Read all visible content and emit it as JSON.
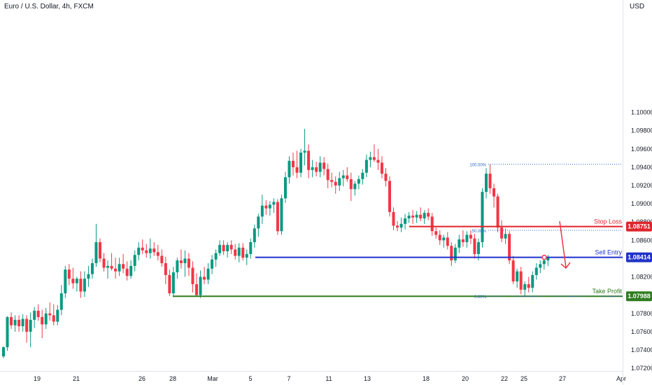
{
  "header": {
    "title": "Euro / U.S. Dollar, 4h, FXCM",
    "currency": "USD"
  },
  "colors": {
    "up": "#089981",
    "down": "#f23645",
    "stop": "#e0232a",
    "entry": "#1f33c9",
    "tp": "#2e7d1e",
    "fib": "#2a6ac8"
  },
  "chart_data": {
    "type": "candlestick",
    "title": "Euro / U.S. Dollar, 4h, FXCM",
    "ylim": [
      1.0717,
      1.1123
    ],
    "yticks": [
      "1.07200",
      "1.07400",
      "1.07600",
      "1.07800",
      "1.08000",
      "1.08200",
      "1.08400",
      "1.08600",
      "1.08800",
      "1.09000",
      "1.09200",
      "1.09400",
      "1.09600",
      "1.09800",
      "1.10000"
    ],
    "xticks": [
      "19",
      "21",
      "26",
      "28",
      "Mar",
      "5",
      "7",
      "11",
      "13",
      "18",
      "20",
      "22",
      "25",
      "27",
      "Apr"
    ],
    "levels": [
      {
        "name": "Stop Loss",
        "value": 1.08751,
        "label": "1.08751",
        "color": "#e0232a"
      },
      {
        "name": "Sell Entry",
        "value": 1.08414,
        "label": "1.08414",
        "color": "#1f33c9"
      },
      {
        "name": "Take Profit",
        "value": 1.07988,
        "label": "1.07988",
        "color": "#2e7d1e"
      }
    ],
    "fibonacci": [
      {
        "label": "100.00%",
        "value": 1.09433
      },
      {
        "label": "50.00%",
        "value": 1.0871
      },
      {
        "label": "0.00%",
        "value": 1.07988
      }
    ],
    "candles": [
      [
        1.0733,
        1.0744,
        1.0731,
        1.0743
      ],
      [
        1.0743,
        1.0777,
        1.0739,
        1.0776
      ],
      [
        1.0776,
        1.0781,
        1.0763,
        1.0767
      ],
      [
        1.0767,
        1.0778,
        1.076,
        1.0773
      ],
      [
        1.0773,
        1.0778,
        1.076,
        1.0766
      ],
      [
        1.0766,
        1.0779,
        1.076,
        1.0774
      ],
      [
        1.0774,
        1.0778,
        1.0748,
        1.076
      ],
      [
        1.076,
        1.0781,
        1.0743,
        1.0773
      ],
      [
        1.0773,
        1.0787,
        1.0764,
        1.0783
      ],
      [
        1.0783,
        1.079,
        1.0772,
        1.0776
      ],
      [
        1.0776,
        1.0784,
        1.0753,
        1.0768
      ],
      [
        1.0768,
        1.0786,
        1.0763,
        1.078
      ],
      [
        1.078,
        1.0792,
        1.0772,
        1.0778
      ],
      [
        1.0778,
        1.079,
        1.0767,
        1.0771
      ],
      [
        1.0771,
        1.0789,
        1.0767,
        1.0784
      ],
      [
        1.0784,
        1.0811,
        1.0778,
        1.0802
      ],
      [
        1.0802,
        1.0832,
        1.0797,
        1.0828
      ],
      [
        1.0828,
        1.0834,
        1.0811,
        1.0818
      ],
      [
        1.0818,
        1.083,
        1.0807,
        1.0813
      ],
      [
        1.0813,
        1.082,
        1.0804,
        1.0818
      ],
      [
        1.0818,
        1.0826,
        1.0797,
        1.0804
      ],
      [
        1.0804,
        1.0826,
        1.0798,
        1.0818
      ],
      [
        1.0818,
        1.0832,
        1.0809,
        1.0823
      ],
      [
        1.0823,
        1.084,
        1.0818,
        1.0835
      ],
      [
        1.0835,
        1.0878,
        1.0831,
        1.0858
      ],
      [
        1.0858,
        1.0862,
        1.0836,
        1.084
      ],
      [
        1.084,
        1.0846,
        1.0826,
        1.083
      ],
      [
        1.083,
        1.0838,
        1.0818,
        1.0832
      ],
      [
        1.0832,
        1.0846,
        1.0827,
        1.0829
      ],
      [
        1.0829,
        1.0841,
        1.0818,
        1.0826
      ],
      [
        1.0826,
        1.0841,
        1.0821,
        1.0834
      ],
      [
        1.0834,
        1.0845,
        1.0824,
        1.0829
      ],
      [
        1.0829,
        1.0837,
        1.0816,
        1.0821
      ],
      [
        1.0821,
        1.0838,
        1.0818,
        1.0832
      ],
      [
        1.0832,
        1.0849,
        1.0826,
        1.0844
      ],
      [
        1.0844,
        1.0858,
        1.0838,
        1.0852
      ],
      [
        1.0852,
        1.0861,
        1.0845,
        1.0849
      ],
      [
        1.0849,
        1.0856,
        1.0841,
        1.0846
      ],
      [
        1.0846,
        1.0862,
        1.084,
        1.0851
      ],
      [
        1.0851,
        1.0858,
        1.0843,
        1.0847
      ],
      [
        1.0847,
        1.0855,
        1.0838,
        1.0843
      ],
      [
        1.0843,
        1.085,
        1.0831,
        1.0835
      ],
      [
        1.0835,
        1.0842,
        1.0812,
        1.0822
      ],
      [
        1.0822,
        1.0828,
        1.0799,
        1.0802
      ],
      [
        1.0802,
        1.0831,
        1.0799,
        1.0825
      ],
      [
        1.0825,
        1.0841,
        1.0818,
        1.0838
      ],
      [
        1.0838,
        1.085,
        1.0829,
        1.0835
      ],
      [
        1.0835,
        1.0849,
        1.082,
        1.084
      ],
      [
        1.084,
        1.0846,
        1.0821,
        1.083
      ],
      [
        1.083,
        1.0837,
        1.0803,
        1.0812
      ],
      [
        1.0812,
        1.0824,
        1.0799,
        1.08
      ],
      [
        1.08,
        1.0827,
        1.0797,
        1.082
      ],
      [
        1.082,
        1.0831,
        1.0812,
        1.0817
      ],
      [
        1.0817,
        1.0835,
        1.0812,
        1.0829
      ],
      [
        1.0829,
        1.0844,
        1.0823,
        1.0839
      ],
      [
        1.0839,
        1.085,
        1.0831,
        1.0846
      ],
      [
        1.0846,
        1.086,
        1.0843,
        1.0855
      ],
      [
        1.0855,
        1.086,
        1.0844,
        1.0848
      ],
      [
        1.0848,
        1.0858,
        1.0841,
        1.0855
      ],
      [
        1.0855,
        1.086,
        1.0845,
        1.085
      ],
      [
        1.085,
        1.0856,
        1.0839,
        1.0843
      ],
      [
        1.0843,
        1.0857,
        1.0836,
        1.0852
      ],
      [
        1.0852,
        1.0857,
        1.0838,
        1.0841
      ],
      [
        1.0841,
        1.085,
        1.0833,
        1.0845
      ],
      [
        1.0845,
        1.0862,
        1.084,
        1.0858
      ],
      [
        1.0858,
        1.0877,
        1.0852,
        1.0873
      ],
      [
        1.0873,
        1.0889,
        1.0864,
        1.0886
      ],
      [
        1.0886,
        1.091,
        1.0878,
        1.0898
      ],
      [
        1.0898,
        1.0904,
        1.0888,
        1.0895
      ],
      [
        1.0895,
        1.0903,
        1.0887,
        1.0899
      ],
      [
        1.0899,
        1.0906,
        1.089,
        1.0902
      ],
      [
        1.0902,
        1.0905,
        1.0866,
        1.087
      ],
      [
        1.087,
        1.091,
        1.0866,
        1.0906
      ],
      [
        1.0906,
        1.0935,
        1.0901,
        1.0929
      ],
      [
        1.0929,
        1.0952,
        1.0922,
        1.0947
      ],
      [
        1.0947,
        1.0956,
        1.0931,
        1.094
      ],
      [
        1.094,
        1.0958,
        1.0928,
        1.0934
      ],
      [
        1.0934,
        1.096,
        1.0929,
        1.0956
      ],
      [
        1.0956,
        1.0982,
        1.0942,
        1.0958
      ],
      [
        1.0958,
        1.0965,
        1.0928,
        1.0937
      ],
      [
        1.0937,
        1.0948,
        1.0929,
        1.094
      ],
      [
        1.094,
        1.0946,
        1.093,
        1.0935
      ],
      [
        1.0935,
        1.0952,
        1.0929,
        1.0945
      ],
      [
        1.0945,
        1.0951,
        1.0931,
        1.0938
      ],
      [
        1.0938,
        1.0944,
        1.0917,
        1.0926
      ],
      [
        1.0926,
        1.0934,
        1.0918,
        1.0924
      ],
      [
        1.0924,
        1.093,
        1.0911,
        1.092
      ],
      [
        1.092,
        1.0935,
        1.0914,
        1.0928
      ],
      [
        1.0928,
        1.0937,
        1.0919,
        1.0931
      ],
      [
        1.0931,
        1.094,
        1.0924,
        1.0927
      ],
      [
        1.0927,
        1.0934,
        1.0903,
        1.0916
      ],
      [
        1.0916,
        1.0925,
        1.0909,
        1.0922
      ],
      [
        1.0922,
        1.0931,
        1.0916,
        1.0927
      ],
      [
        1.0927,
        1.0938,
        1.0921,
        1.0934
      ],
      [
        1.0934,
        1.0954,
        1.0929,
        1.0948
      ],
      [
        1.0948,
        1.0957,
        1.094,
        1.0951
      ],
      [
        1.0951,
        1.0965,
        1.0946,
        1.0948
      ],
      [
        1.0948,
        1.096,
        1.0937,
        1.0945
      ],
      [
        1.0945,
        1.0952,
        1.0928,
        1.0933
      ],
      [
        1.0933,
        1.0939,
        1.0919,
        1.0925
      ],
      [
        1.0925,
        1.093,
        1.0886,
        1.0891
      ],
      [
        1.0891,
        1.0896,
        1.0871,
        1.0876
      ],
      [
        1.0876,
        1.0881,
        1.087,
        1.0874
      ],
      [
        1.0874,
        1.0885,
        1.0869,
        1.0878
      ],
      [
        1.0878,
        1.0889,
        1.0872,
        1.0884
      ],
      [
        1.0884,
        1.0891,
        1.0879,
        1.0887
      ],
      [
        1.0887,
        1.0893,
        1.0878,
        1.0885
      ],
      [
        1.0885,
        1.0892,
        1.0879,
        1.0888
      ],
      [
        1.0888,
        1.0896,
        1.0881,
        1.0884
      ],
      [
        1.0884,
        1.0893,
        1.0878,
        1.089
      ],
      [
        1.089,
        1.0895,
        1.0882,
        1.0886
      ],
      [
        1.0886,
        1.089,
        1.0865,
        1.087
      ],
      [
        1.087,
        1.0874,
        1.0862,
        1.0866
      ],
      [
        1.0866,
        1.0871,
        1.0855,
        1.086
      ],
      [
        1.086,
        1.0866,
        1.0852,
        1.0863
      ],
      [
        1.0863,
        1.0869,
        1.085,
        1.0854
      ],
      [
        1.0854,
        1.0858,
        1.0832,
        1.0838
      ],
      [
        1.0838,
        1.0856,
        1.0835,
        1.0852
      ],
      [
        1.0852,
        1.0866,
        1.0846,
        1.0861
      ],
      [
        1.0861,
        1.0871,
        1.0853,
        1.0858
      ],
      [
        1.0858,
        1.087,
        1.0852,
        1.0866
      ],
      [
        1.0866,
        1.0871,
        1.0856,
        1.0862
      ],
      [
        1.0862,
        1.0867,
        1.084,
        1.0845
      ],
      [
        1.0845,
        1.0862,
        1.0838,
        1.0858
      ],
      [
        1.0858,
        1.0917,
        1.0852,
        1.0913
      ],
      [
        1.0913,
        1.0939,
        1.0906,
        1.0933
      ],
      [
        1.0933,
        1.0943,
        1.0911,
        1.0917
      ],
      [
        1.0917,
        1.0922,
        1.0896,
        1.0908
      ],
      [
        1.0908,
        1.0911,
        1.0869,
        1.0874
      ],
      [
        1.0874,
        1.0882,
        1.0858,
        1.0862
      ],
      [
        1.0862,
        1.0873,
        1.0856,
        1.0867
      ],
      [
        1.0867,
        1.087,
        1.0834,
        1.0838
      ],
      [
        1.0838,
        1.0843,
        1.0812,
        1.0815
      ],
      [
        1.0815,
        1.0829,
        1.0808,
        1.0826
      ],
      [
        1.0826,
        1.0831,
        1.0801,
        1.0806
      ],
      [
        1.0806,
        1.0815,
        1.0799,
        1.0812
      ],
      [
        1.0812,
        1.082,
        1.0803,
        1.0808
      ],
      [
        1.0808,
        1.0826,
        1.0803,
        1.0822
      ],
      [
        1.0822,
        1.0835,
        1.0817,
        1.083
      ],
      [
        1.083,
        1.0838,
        1.0824,
        1.0834
      ],
      [
        1.0834,
        1.0841,
        1.0828,
        1.0838
      ],
      [
        1.0838,
        1.0844,
        1.0832,
        1.0841
      ]
    ]
  }
}
